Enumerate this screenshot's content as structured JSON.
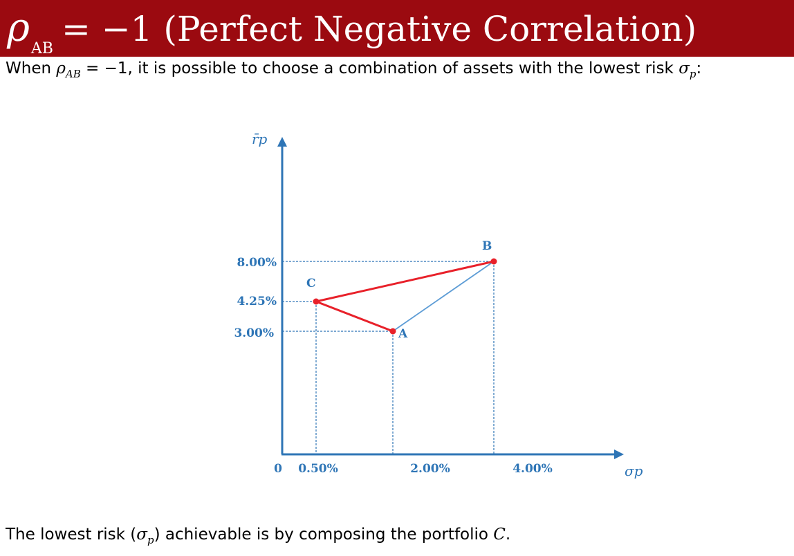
{
  "title": {
    "symbol": "ρ",
    "subscript": "AB",
    "rest": "= −1 (Perfect Negative Correlation)"
  },
  "intro": {
    "prefix": "When ",
    "rho": "ρ",
    "rho_sub": "AB",
    "middle": " = −1, it is possible to choose a combination of assets with the lowest risk ",
    "sigma": "σ",
    "sigma_sub": "p",
    "suffix": ":"
  },
  "diagram": {
    "y_axis_label": "r̄p",
    "x_axis_label": "σp",
    "origin_label": "0",
    "x_ticks": [
      "0.50%",
      "2.00%",
      "4.00%"
    ],
    "y_ticks": [
      "8.00%",
      "4.25%",
      "3.00%"
    ],
    "points": [
      {
        "label": "C",
        "color": "#e8212a"
      },
      {
        "label": "A",
        "color": "#e8212a"
      },
      {
        "label": "B",
        "color": "#e8212a"
      }
    ],
    "colors": {
      "axis": "#2e75b6",
      "frontier_line": "#e8212a",
      "ab_line": "#5b9bd5",
      "guide": "#2e75b6"
    }
  },
  "conclusion": {
    "prefix": "The lowest risk (",
    "sigma": "σ",
    "sigma_sub": "p",
    "middle": ") achievable is by composing the portfolio ",
    "portfolio": "C",
    "suffix": "."
  }
}
